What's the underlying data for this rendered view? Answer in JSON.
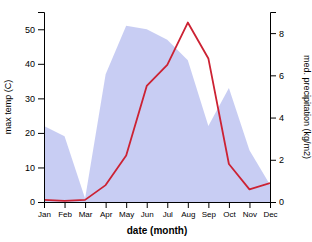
{
  "chart_data": {
    "type": "line",
    "xlabel": "date (month)",
    "ylabel": "max temp (C)",
    "y2label": "med. precipitation (kg/m2)",
    "categories": [
      "Jan",
      "Feb",
      "Mar",
      "Apr",
      "May",
      "Jun",
      "Jul",
      "Aug",
      "Sep",
      "Oct",
      "Nov",
      "Dec"
    ],
    "series": [
      {
        "type": "area",
        "color": "#b0b8ee",
        "values": [
          22,
          19,
          1,
          37,
          51,
          50,
          47,
          41,
          22,
          33,
          15,
          5
        ]
      },
      {
        "type": "line",
        "color": "#cc2233",
        "axis": "y2",
        "values": [
          0.1,
          0.05,
          0.1,
          0.8,
          2.2,
          5.5,
          6.5,
          8.5,
          6.8,
          1.8,
          0.6,
          0.9
        ]
      }
    ],
    "ylim": [
      0,
      55
    ],
    "yticks": [
      0,
      10,
      20,
      30,
      40,
      50
    ],
    "y2lim": [
      0,
      9
    ],
    "y2ticks": [
      0,
      2,
      4,
      6,
      8
    ]
  }
}
